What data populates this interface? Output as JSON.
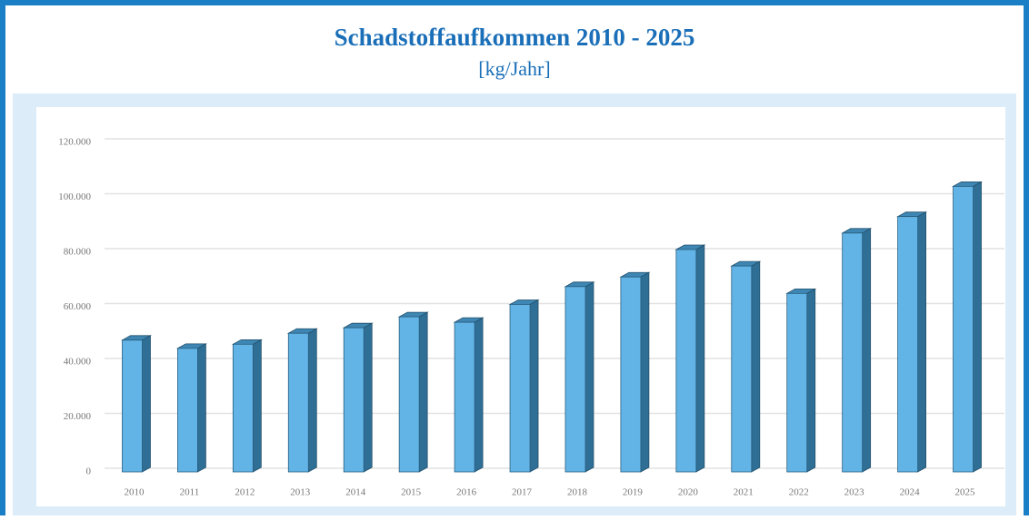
{
  "chart_data": {
    "type": "bar3d",
    "title": "Schadstoffaufkommen 2010 - 2025",
    "subtitle": "[kg/Jahr]",
    "categories": [
      "2010",
      "2011",
      "2012",
      "2013",
      "2014",
      "2015",
      "2016",
      "2017",
      "2018",
      "2019",
      "2020",
      "2021",
      "2022",
      "2023",
      "2024",
      "2025"
    ],
    "values": [
      48000,
      45000,
      46500,
      50500,
      52500,
      56500,
      54500,
      61000,
      67500,
      71000,
      81000,
      75000,
      65000,
      87000,
      93000,
      104000
    ],
    "color": "#62b4e6",
    "ylim": [
      0,
      120000
    ],
    "yticks": [
      0,
      {
        "value": 20000,
        "label": "20.000"
      },
      {
        "value": 40000,
        "label": "40.000"
      },
      {
        "value": 60000,
        "label": "60.000"
      },
      {
        "value": 80000,
        "label": "80.000"
      },
      {
        "value": 100000,
        "label": "100.000"
      },
      {
        "value": 120000,
        "label": "120.000"
      }
    ],
    "grid": true
  }
}
